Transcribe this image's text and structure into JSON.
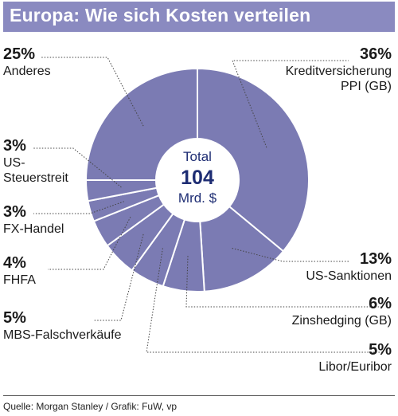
{
  "title": "Europa: Wie sich Kosten verteilen",
  "center": {
    "line1": "Total",
    "value": "104",
    "line3": "Mrd. $"
  },
  "source": "Quelle: Morgan Stanley / Grafik: FuW, vp",
  "colors": {
    "slice": "#7b7bb3",
    "title_bg": "#8a8ac0",
    "center_text": "#1e2d73"
  },
  "chart_data": {
    "type": "pie",
    "style": "donut",
    "total": 104,
    "unit": "Mrd. $",
    "slices": [
      {
        "label": "Kreditversicherung PPI (GB)",
        "value": 36,
        "display": "36%"
      },
      {
        "label": "US-Sanktionen",
        "value": 13,
        "display": "13%"
      },
      {
        "label": "Zinshedging (GB)",
        "value": 6,
        "display": "6%"
      },
      {
        "label": "Libor/Euribor",
        "value": 5,
        "display": "5%"
      },
      {
        "label": "MBS-Falschverkäufe",
        "value": 5,
        "display": "5%"
      },
      {
        "label": "FHFA",
        "value": 4,
        "display": "4%"
      },
      {
        "label": "FX-Handel",
        "value": 3,
        "display": "3%"
      },
      {
        "label": "US-Steuerstreit",
        "value": 3,
        "display": "3%"
      },
      {
        "label": "Anderes",
        "value": 25,
        "display": "25%"
      }
    ]
  }
}
